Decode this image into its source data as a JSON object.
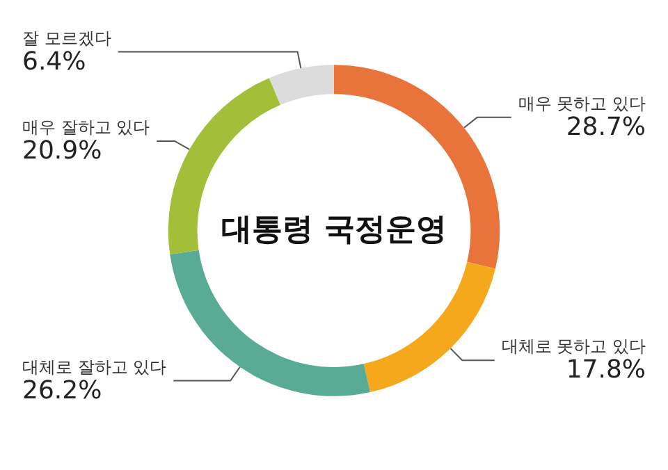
{
  "chart_data": {
    "type": "donut",
    "title": "대통령 국정운영",
    "categories": [
      "매우 못하고 있다",
      "대체로 못하고 있다",
      "대체로 잘하고 있다",
      "매우 잘하고 있다",
      "잘 모르겠다"
    ],
    "values": [
      28.7,
      17.8,
      26.2,
      20.9,
      6.4
    ],
    "colors": [
      "#e8743b",
      "#f5a81c",
      "#5aab96",
      "#a3bf3a",
      "#dcdcdc"
    ],
    "value_labels": [
      "28.7%",
      "17.8%",
      "26.2%",
      "20.9%",
      "6.4%"
    ],
    "legend": false
  }
}
